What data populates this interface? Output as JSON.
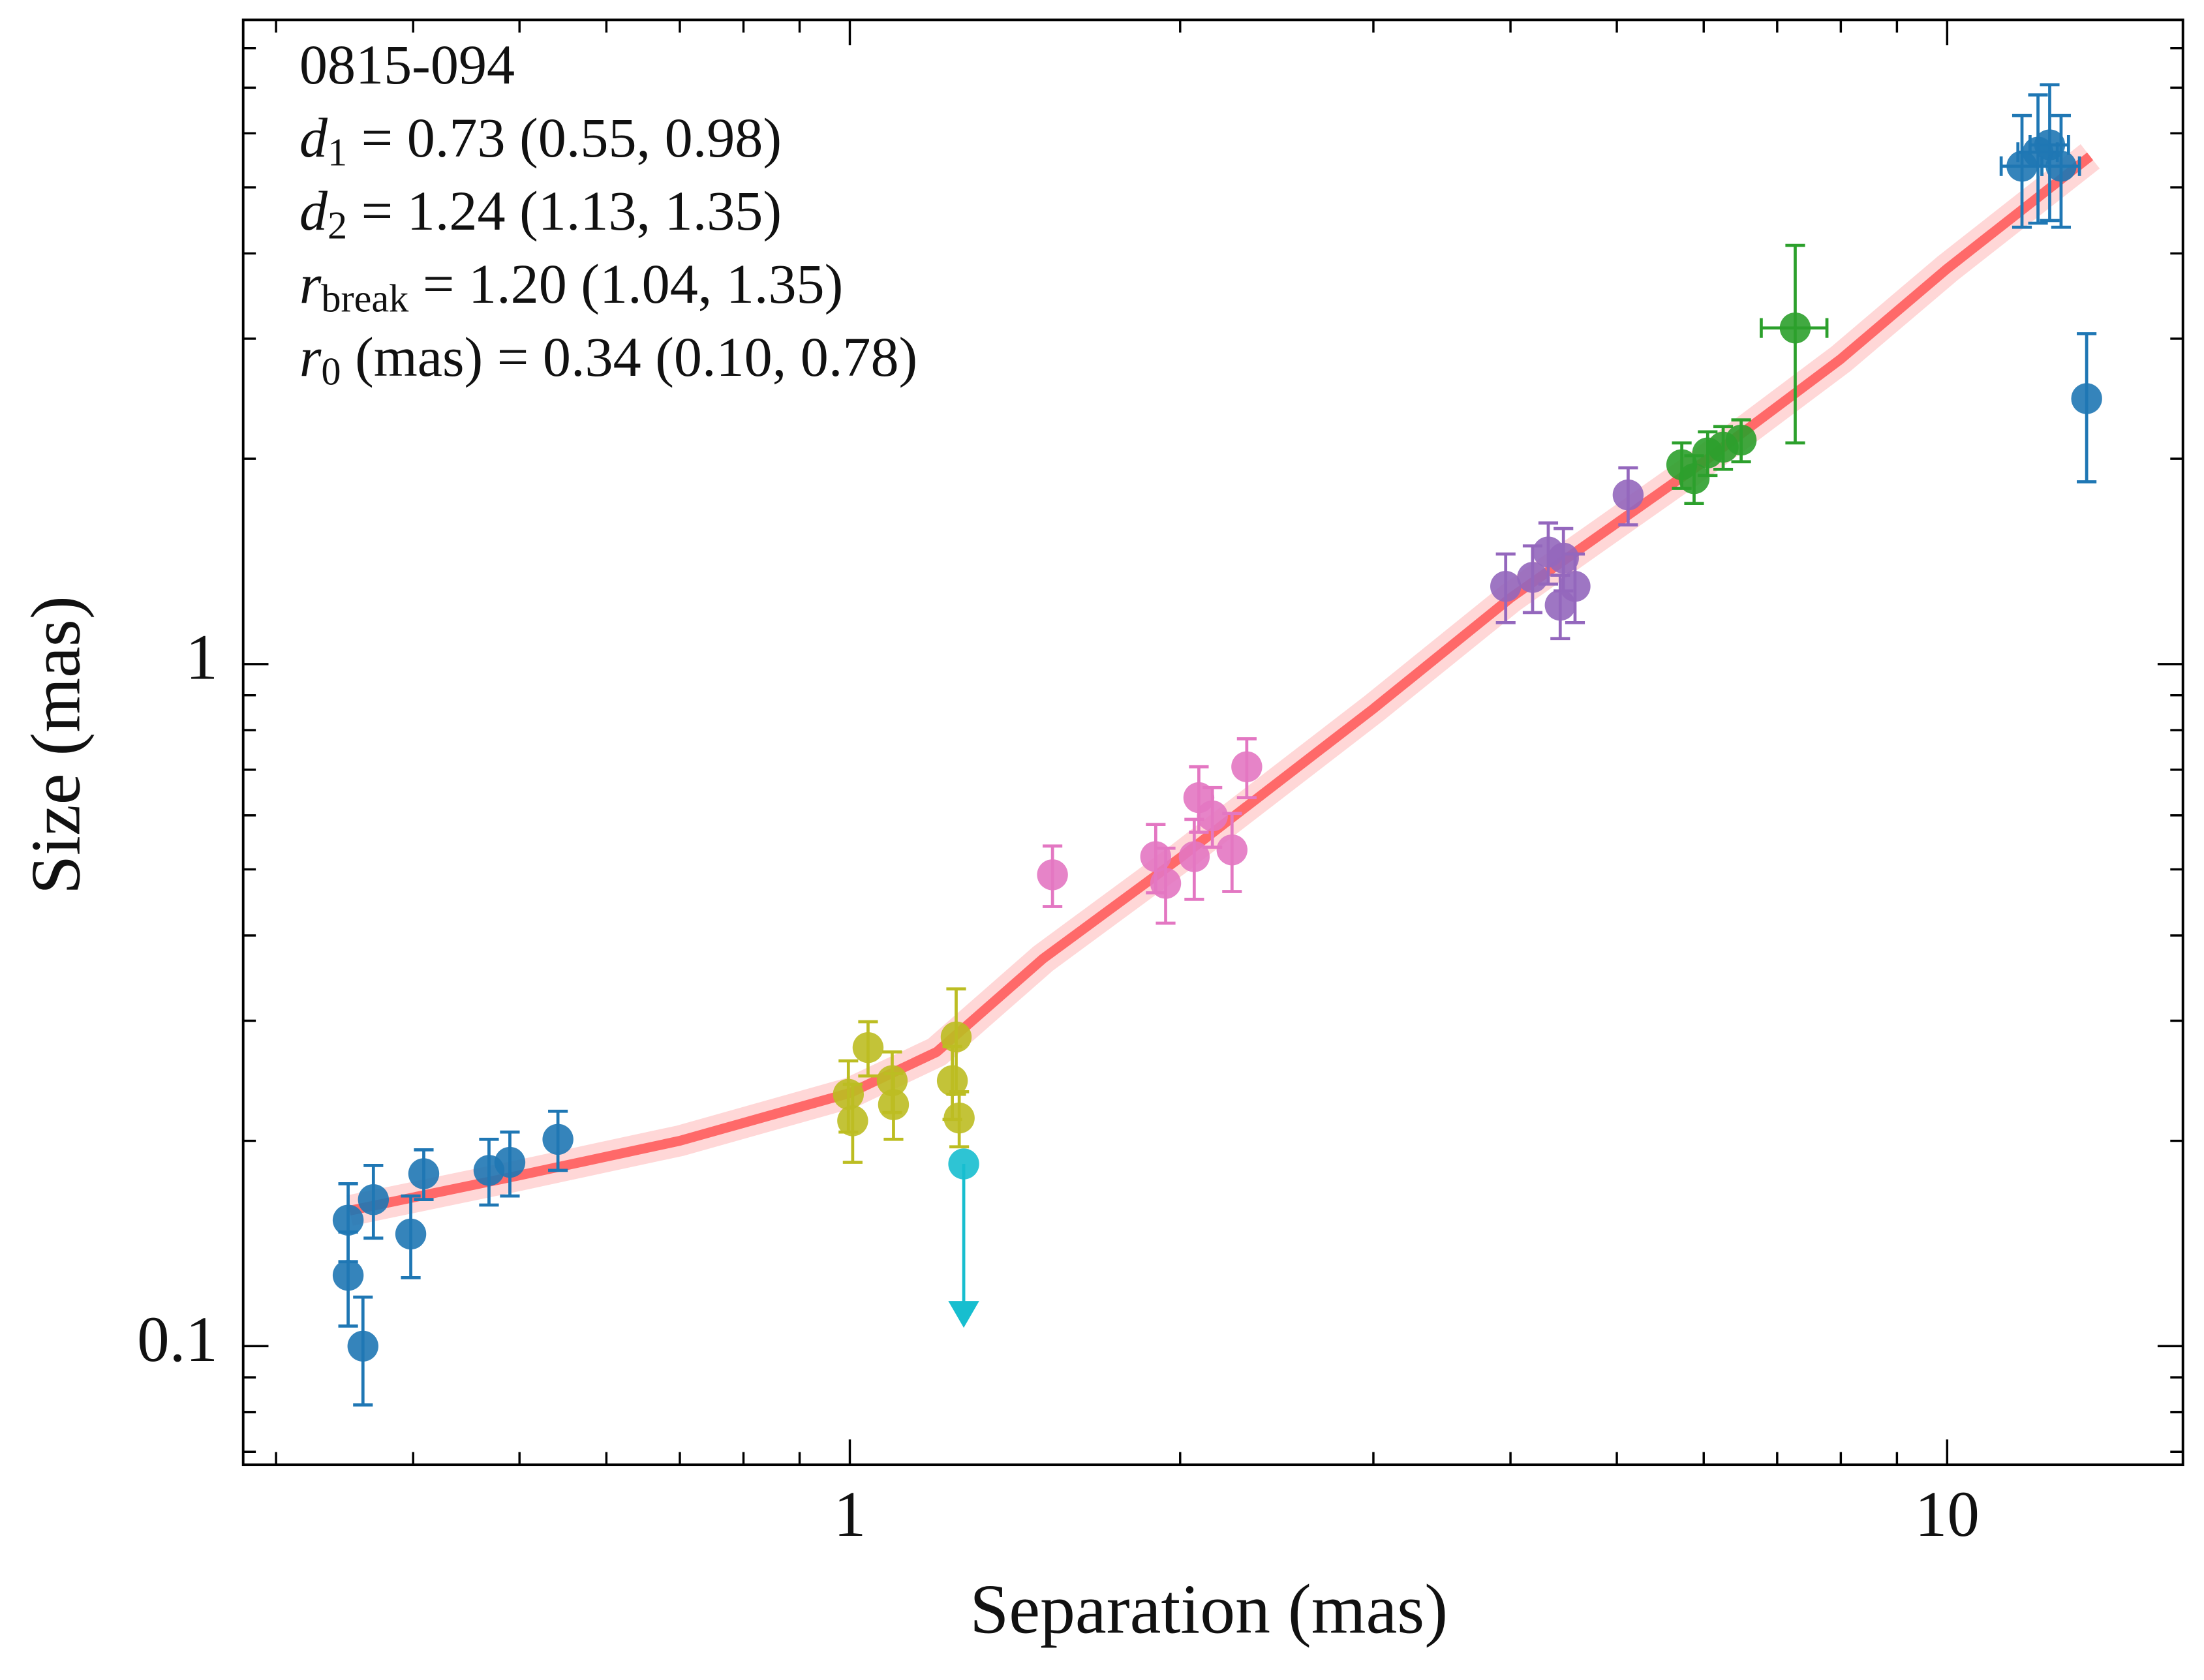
{
  "chart_data": {
    "type": "scatter",
    "xlabel": "Separation (mas)",
    "ylabel": "Size (mas)",
    "log_x": true,
    "log_y": true,
    "xlim": [
      0.28,
      16.4
    ],
    "ylim": [
      0.067,
      8.8
    ],
    "xticks": [
      1,
      10
    ],
    "xminor": [
      0.3,
      0.4,
      0.5,
      0.6,
      0.7,
      0.8,
      0.9,
      2,
      3,
      4,
      5,
      6,
      7,
      8,
      9
    ],
    "yticks": [
      0.1,
      1
    ],
    "yminor": [
      0.07,
      0.08,
      0.09,
      0.2,
      0.3,
      0.4,
      0.5,
      0.6,
      0.7,
      0.8,
      0.9,
      2,
      3,
      4,
      5,
      6,
      7,
      8
    ],
    "annotations": [
      {
        "text": "0815-094"
      },
      {
        "symbol": "d",
        "sub": "1",
        "text": " = 0.73 (0.55, 0.98)"
      },
      {
        "symbol": "d",
        "sub": "2",
        "text": " = 1.24 (1.13, 1.35)"
      },
      {
        "symbol": "r",
        "sub": "break",
        "text": " = 1.20 (1.04, 1.35)"
      },
      {
        "symbol": "r",
        "sub": "0",
        "text": " (mas) = 0.34 (0.10, 0.78)"
      }
    ],
    "fit": {
      "color": "#ff2020",
      "x": [
        0.35,
        0.5,
        0.7,
        1.0,
        1.2,
        1.5,
        2,
        3,
        4,
        6,
        8,
        10,
        13.5
      ],
      "values": [
        0.158,
        0.178,
        0.2,
        0.235,
        0.27,
        0.37,
        0.52,
        0.86,
        1.25,
        1.98,
        2.8,
        3.8,
        5.55
      ]
    },
    "series": [
      {
        "color": "#1f77b4",
        "x": [
          0.349,
          0.349,
          0.36,
          0.368,
          0.398,
          0.409,
          0.469,
          0.49,
          0.542
        ],
        "values": [
          0.153,
          0.127,
          0.1,
          0.164,
          0.146,
          0.179,
          0.181,
          0.186,
          0.201
        ],
        "yerr": [
          0.02,
          0.02,
          0.018,
          0.02,
          0.02,
          0.015,
          0.02,
          0.02,
          0.02
        ]
      },
      {
        "color": "#bcbd22",
        "x": [
          0.997,
          1.006,
          1.039,
          1.093,
          1.096,
          1.24,
          1.258,
          1.25
        ],
        "values": [
          0.234,
          0.214,
          0.274,
          0.245,
          0.226,
          0.245,
          0.216,
          0.284
        ],
        "yerr": [
          0.028,
          0.028,
          0.025,
          0.025,
          0.025,
          0.03,
          0.02,
          0.05
        ]
      },
      {
        "color": "#17becf",
        "x": [
          1.27
        ],
        "values": [
          0.185
        ],
        "limit": [
          0.11
        ]
      },
      {
        "color": "#e377c2",
        "x": [
          1.53,
          1.9,
          1.94,
          2.06,
          2.08,
          2.14,
          2.23,
          2.3
        ],
        "values": [
          0.491,
          0.522,
          0.477,
          0.522,
          0.637,
          0.599,
          0.534,
          0.707
        ],
        "yerr": [
          0.05,
          0.06,
          0.06,
          0.07,
          0.07,
          0.06,
          0.07,
          0.07
        ]
      },
      {
        "color": "#9467bd",
        "x": [
          3.96,
          4.19,
          4.33,
          4.47,
          4.44,
          4.58,
          5.12
        ],
        "values": [
          1.3,
          1.34,
          1.46,
          1.43,
          1.22,
          1.3,
          1.77
        ],
        "yerr": [
          0.15,
          0.15,
          0.15,
          0.15,
          0.13,
          0.15,
          0.17
        ]
      },
      {
        "color": "#2ca02c",
        "x": [
          5.73,
          5.88,
          6.05,
          6.25,
          6.49,
          7.27
        ],
        "values": [
          1.96,
          1.87,
          2.04,
          2.08,
          2.13,
          3.11
        ],
        "yerr": [
          0.15,
          0.15,
          0.15,
          0.15,
          0.15,
          1.0
        ],
        "xerr": [
          0,
          0,
          0,
          0,
          0,
          0.5
        ]
      },
      {
        "color": "#1f77b4",
        "x": [
          11.7,
          12.1,
          12.4,
          12.7,
          13.4
        ],
        "values": [
          5.37,
          5.63,
          5.77,
          5.37,
          2.45
        ],
        "yerr": [
          1.0,
          1.2,
          1.3,
          1.0,
          0.6
        ],
        "xerr": [
          0.5,
          0.5,
          0.5,
          0.5,
          0
        ]
      }
    ]
  }
}
